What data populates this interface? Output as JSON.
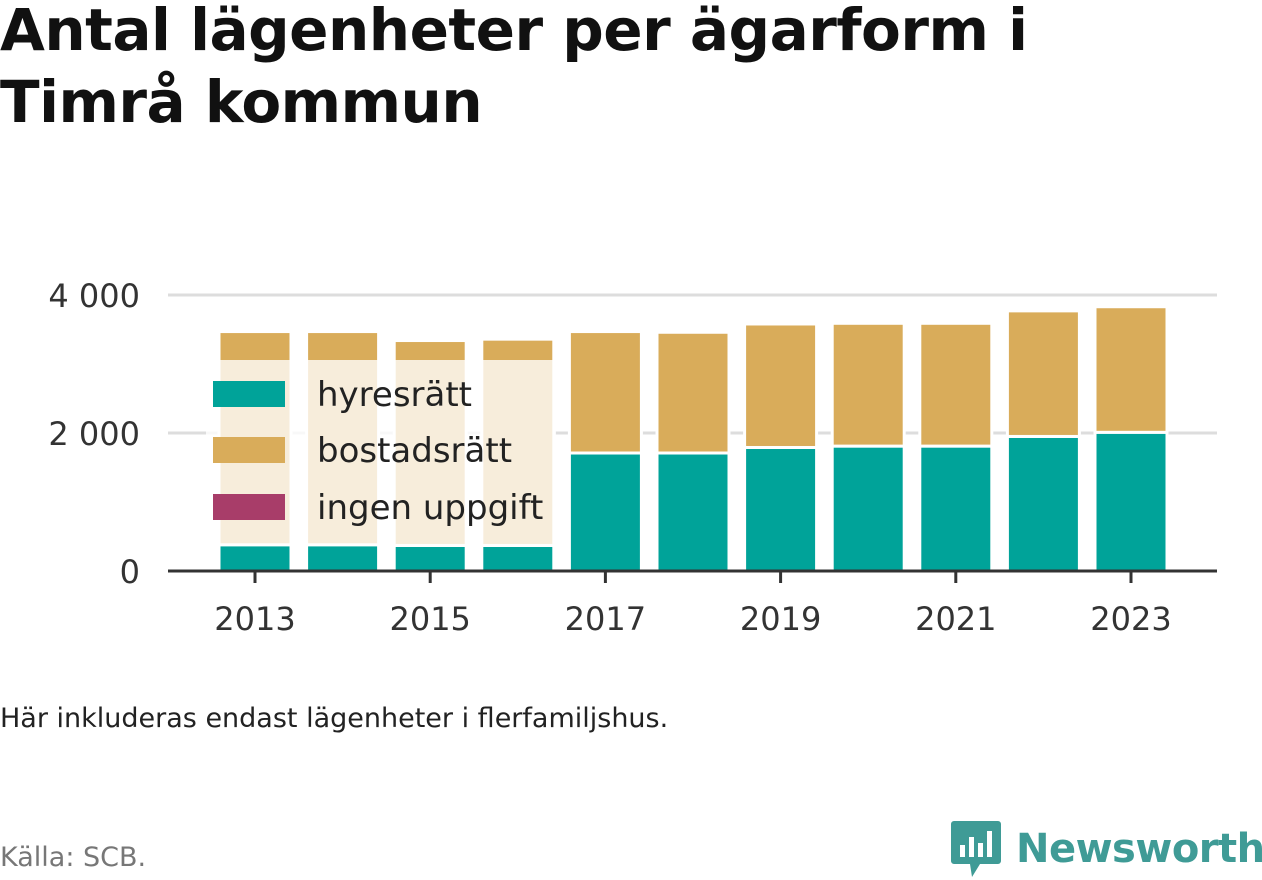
{
  "title": "Antal lägenheter per ägarform i Timrå kommun",
  "note": "Här inkluderas endast lägenheter i flerfamiljshus.",
  "source": "Källa: SCB.",
  "brand": "Newsworthy",
  "colors": {
    "hyresratt": "#00a399",
    "bostadsratt": "#d9ac5a",
    "ingen_uppgift": "#a83d69",
    "grid": "#dddddd",
    "axis": "#333333",
    "brand": "#3f9b96"
  },
  "chart_data": {
    "type": "bar",
    "stacked": true,
    "categories": [
      "2013",
      "2014",
      "2015",
      "2016",
      "2017",
      "2018",
      "2019",
      "2020",
      "2021",
      "2022",
      "2023"
    ],
    "x_tick_labels": [
      "2013",
      "2015",
      "2017",
      "2019",
      "2021",
      "2023"
    ],
    "y_ticks": [
      0,
      2000,
      4000
    ],
    "y_tick_labels": [
      "0",
      "2 000",
      "4 000"
    ],
    "ylim": [
      0,
      4000
    ],
    "grid": true,
    "legend_position": "top-left",
    "series": [
      {
        "name": "hyresrätt",
        "values": [
          380,
          380,
          370,
          370,
          1710,
          1710,
          1790,
          1810,
          1810,
          1950,
          2010
        ]
      },
      {
        "name": "bostadsrätt",
        "values": [
          3090,
          3090,
          2970,
          2990,
          1760,
          1750,
          1790,
          1780,
          1780,
          1820,
          1820
        ]
      },
      {
        "name": "ingen uppgift",
        "values": [
          0,
          0,
          0,
          0,
          0,
          0,
          0,
          0,
          0,
          0,
          0
        ]
      }
    ]
  }
}
